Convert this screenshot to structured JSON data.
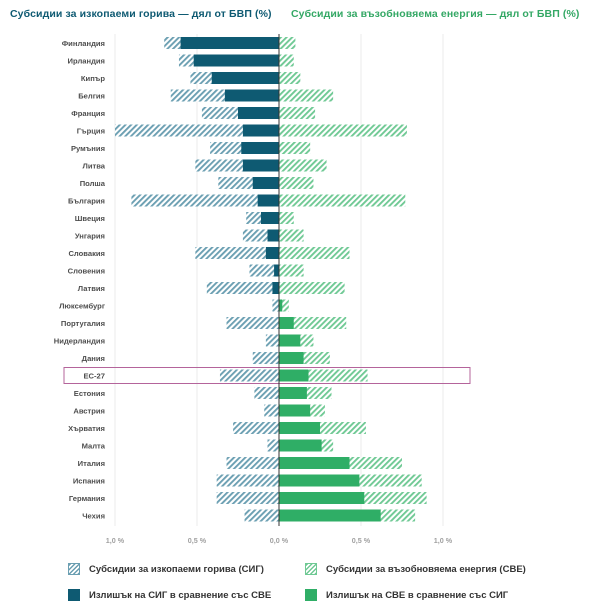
{
  "titles": {
    "fossil": "Субсидии за изкопаеми горива — дял от БВП (%)",
    "renewable": "Субсидии за възобновяема енергия — дял от БВП (%)"
  },
  "legend": {
    "fossil_hatch": "Субсидии за изкопаеми горива (СИГ)",
    "renew_hatch": "Субсидии за възобновяема енергия (СВЕ)",
    "fossil_solid": "Излишък на СИГ в сравнение със СВЕ",
    "renew_solid": "Излишък на СВЕ в сравнение със СИГ"
  },
  "colors": {
    "fossil_solid": "#0e5a72",
    "fossil_hatch": "#6b9fb2",
    "renew_solid": "#2fae66",
    "renew_hatch": "#6fc994",
    "highlight": "#b4649b"
  },
  "chart_data": {
    "type": "bar",
    "orientation": "horizontal-diverging",
    "xlim": [
      -1.0,
      1.0
    ],
    "tick_labels": [
      "1,0 %",
      "0,5 %",
      "0,0 %",
      "0,5 %",
      "1,0 %"
    ],
    "tick_values": [
      -1.0,
      -0.5,
      0.0,
      0.5,
      1.0
    ],
    "highlight": "ЕС-27",
    "categories": [
      "Финландия",
      "Ирландия",
      "Кипър",
      "Белгия",
      "Франция",
      "Гърция",
      "Румъния",
      "Литва",
      "Полша",
      "България",
      "Швеция",
      "Унгария",
      "Словакия",
      "Словения",
      "Латвия",
      "Люксембург",
      "Португалия",
      "Нидерландия",
      "Дания",
      "ЕС-27",
      "Естония",
      "Австрия",
      "Хърватия",
      "Малта",
      "Италия",
      "Испания",
      "Германия",
      "Чехия"
    ],
    "series": [
      {
        "name": "Субсидии за изкопаеми горива (СИГ)",
        "values": [
          0.7,
          0.61,
          0.54,
          0.66,
          0.47,
          1.0,
          0.42,
          0.51,
          0.37,
          0.9,
          0.2,
          0.22,
          0.51,
          0.18,
          0.44,
          0.04,
          0.32,
          0.08,
          0.16,
          0.36,
          0.15,
          0.09,
          0.28,
          0.07,
          0.32,
          0.38,
          0.38,
          0.21
        ]
      },
      {
        "name": "Субсидии за възобновяема енергия (СВЕ)",
        "values": [
          0.1,
          0.09,
          0.13,
          0.33,
          0.22,
          0.78,
          0.19,
          0.29,
          0.21,
          0.77,
          0.09,
          0.15,
          0.43,
          0.15,
          0.4,
          0.06,
          0.41,
          0.21,
          0.31,
          0.54,
          0.32,
          0.28,
          0.53,
          0.33,
          0.75,
          0.87,
          0.9,
          0.83
        ]
      }
    ]
  }
}
